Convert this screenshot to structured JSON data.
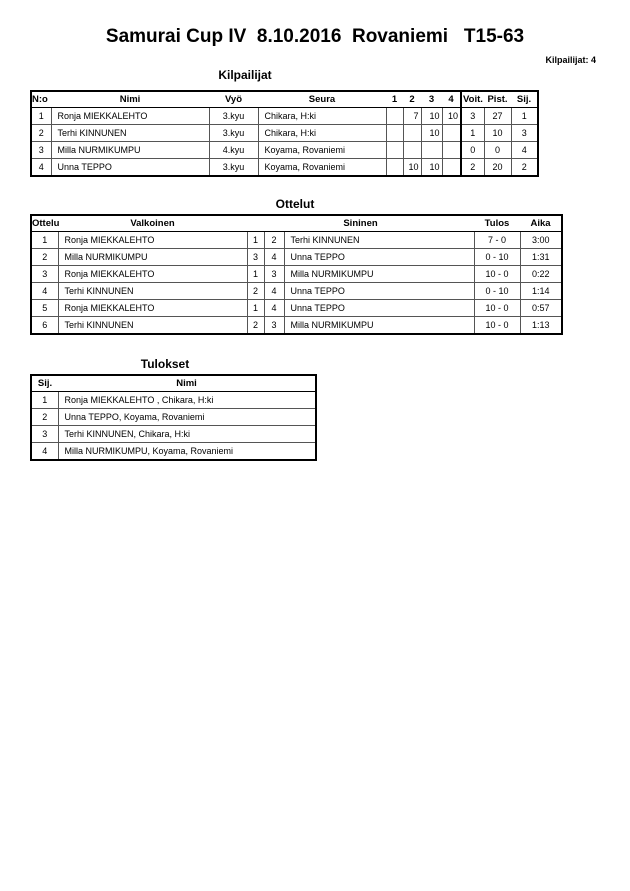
{
  "title": "Samurai Cup IV  8.10.2016  Rovaniemi   T15-63",
  "competitor_count": "Kilpailijat: 4",
  "competitors": {
    "heading": "Kilpailijat",
    "headers": [
      "N:o",
      "Nimi",
      "Vyö",
      "Seura",
      "1",
      "2",
      "3",
      "4",
      "Voit.",
      "Pist.",
      "Sij."
    ],
    "rows": [
      [
        "1",
        "Ronja MIEKKALEHTO",
        "3.kyu",
        "Chikara, H:ki",
        "",
        "7",
        "10",
        "10",
        "3",
        "27",
        "1"
      ],
      [
        "2",
        "Terhi KINNUNEN",
        "3.kyu",
        "Chikara, H:ki",
        "",
        "",
        "10",
        "",
        "1",
        "10",
        "3"
      ],
      [
        "3",
        "Milla NURMIKUMPU",
        "4.kyu",
        "Koyama, Rovaniemi",
        "",
        "",
        "",
        "",
        "0",
        "0",
        "4"
      ],
      [
        "4",
        "Unna TEPPO",
        "3.kyu",
        "Koyama, Rovaniemi",
        "",
        "10",
        "10",
        "",
        "2",
        "20",
        "2"
      ]
    ]
  },
  "matches": {
    "heading": "Ottelut",
    "headers": [
      "Ottelu",
      "Valkoinen",
      "Sininen",
      "Tulos",
      "Aika"
    ],
    "rows": [
      [
        "1",
        "Ronja MIEKKALEHTO",
        "1",
        "2",
        "Terhi KINNUNEN",
        "7 - 0",
        "3:00"
      ],
      [
        "2",
        "Milla NURMIKUMPU",
        "3",
        "4",
        "Unna TEPPO",
        "0 - 10",
        "1:31"
      ],
      [
        "3",
        "Ronja MIEKKALEHTO",
        "1",
        "3",
        "Milla NURMIKUMPU",
        "10 - 0",
        "0:22"
      ],
      [
        "4",
        "Terhi KINNUNEN",
        "2",
        "4",
        "Unna TEPPO",
        "0 - 10",
        "1:14"
      ],
      [
        "5",
        "Ronja MIEKKALEHTO",
        "1",
        "4",
        "Unna TEPPO",
        "10 - 0",
        "0:57"
      ],
      [
        "6",
        "Terhi KINNUNEN",
        "2",
        "3",
        "Milla NURMIKUMPU",
        "10 - 0",
        "1:13"
      ]
    ]
  },
  "results": {
    "heading": "Tulokset",
    "headers": [
      "Sij.",
      "Nimi"
    ],
    "rows": [
      [
        "1",
        "Ronja MIEKKALEHTO , Chikara, H:ki"
      ],
      [
        "2",
        "Unna TEPPO, Koyama, Rovaniemi"
      ],
      [
        "3",
        "Terhi KINNUNEN, Chikara, H:ki"
      ],
      [
        "4",
        "Milla NURMIKUMPU, Koyama, Rovaniemi"
      ]
    ]
  }
}
